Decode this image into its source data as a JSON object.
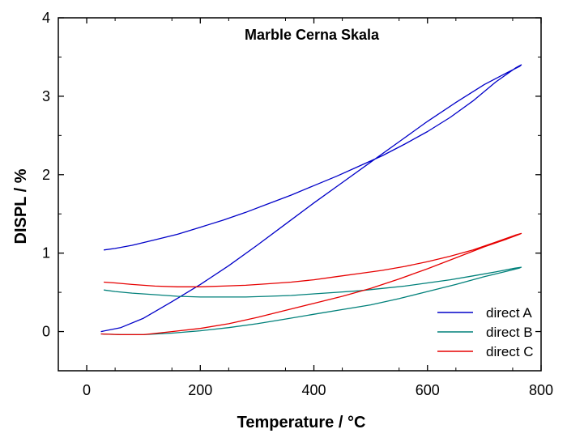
{
  "chart_data": {
    "type": "line",
    "title": "Marble Cerna Skala",
    "xlabel": "Temperature / °C",
    "ylabel": "DISPL / %",
    "xlim": [
      -50,
      800
    ],
    "ylim": [
      -0.5,
      4
    ],
    "xticks": [
      0,
      200,
      400,
      600,
      800
    ],
    "yticks": [
      0,
      1,
      2,
      3,
      4
    ],
    "xtick_labels": [
      "0",
      "200",
      "400",
      "600",
      "800"
    ],
    "ytick_labels": [
      "0",
      "1",
      "2",
      "3",
      "4"
    ],
    "grid": false,
    "legend_position": "bottom-right",
    "series": [
      {
        "name": "direct A",
        "color": "#0000c8",
        "x": [
          25,
          60,
          100,
          150,
          200,
          250,
          300,
          350,
          400,
          450,
          500,
          550,
          600,
          650,
          700,
          740,
          762,
          765,
          755,
          720,
          680,
          640,
          600,
          560,
          520,
          480,
          440,
          400,
          360,
          320,
          280,
          240,
          200,
          160,
          120,
          80,
          50,
          30
        ],
        "y": [
          0.0,
          0.05,
          0.17,
          0.38,
          0.6,
          0.84,
          1.1,
          1.37,
          1.64,
          1.9,
          2.16,
          2.42,
          2.68,
          2.92,
          3.15,
          3.3,
          3.38,
          3.4,
          3.36,
          3.18,
          2.94,
          2.73,
          2.55,
          2.39,
          2.24,
          2.11,
          1.98,
          1.86,
          1.74,
          1.63,
          1.52,
          1.42,
          1.33,
          1.24,
          1.17,
          1.1,
          1.06,
          1.04
        ]
      },
      {
        "name": "direct B",
        "color": "#00807a",
        "x": [
          25,
          60,
          100,
          150,
          200,
          250,
          300,
          350,
          400,
          450,
          500,
          550,
          600,
          650,
          700,
          740,
          762,
          765,
          755,
          720,
          680,
          640,
          600,
          560,
          520,
          480,
          440,
          400,
          360,
          320,
          280,
          240,
          200,
          160,
          120,
          80,
          50,
          30
        ],
        "y": [
          -0.03,
          -0.04,
          -0.04,
          -0.02,
          0.01,
          0.05,
          0.1,
          0.16,
          0.22,
          0.28,
          0.34,
          0.42,
          0.51,
          0.6,
          0.7,
          0.77,
          0.81,
          0.82,
          0.81,
          0.76,
          0.71,
          0.66,
          0.62,
          0.58,
          0.55,
          0.52,
          0.5,
          0.48,
          0.46,
          0.45,
          0.44,
          0.44,
          0.44,
          0.45,
          0.47,
          0.49,
          0.51,
          0.53
        ]
      },
      {
        "name": "direct C",
        "color": "#e60000",
        "x": [
          25,
          60,
          100,
          150,
          200,
          250,
          300,
          350,
          400,
          450,
          500,
          550,
          600,
          650,
          700,
          740,
          762,
          765,
          755,
          720,
          680,
          640,
          600,
          560,
          520,
          480,
          440,
          400,
          360,
          320,
          280,
          240,
          200,
          160,
          120,
          80,
          50,
          30
        ],
        "y": [
          -0.03,
          -0.04,
          -0.04,
          0.0,
          0.04,
          0.1,
          0.18,
          0.27,
          0.36,
          0.45,
          0.55,
          0.67,
          0.8,
          0.94,
          1.08,
          1.18,
          1.24,
          1.25,
          1.23,
          1.14,
          1.04,
          0.96,
          0.89,
          0.83,
          0.78,
          0.74,
          0.7,
          0.66,
          0.63,
          0.61,
          0.59,
          0.58,
          0.57,
          0.57,
          0.58,
          0.6,
          0.62,
          0.63
        ]
      }
    ]
  }
}
